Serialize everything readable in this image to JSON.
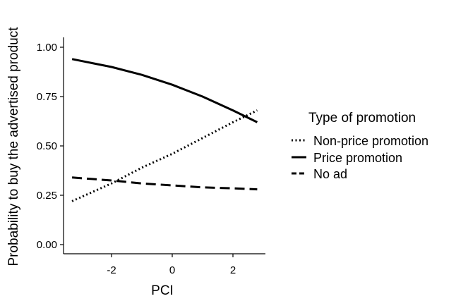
{
  "chart_data": {
    "type": "line",
    "title": "",
    "xlabel": "PCI",
    "ylabel": "Probability to buy the advertised product",
    "xlim": [
      -3.5,
      2.8
    ],
    "ylim": [
      0,
      1
    ],
    "x_ticks": [
      -2,
      0,
      2
    ],
    "x_tick_labels": [
      "-2",
      "0",
      "2"
    ],
    "y_ticks": [
      0,
      0.25,
      0.5,
      0.75,
      1
    ],
    "y_tick_labels": [
      "0.00",
      "0.25",
      "0.50",
      "0.75",
      "1.00"
    ],
    "grid": false,
    "legend": {
      "title": "Type of promotion",
      "position": "right",
      "entries": [
        "Non-price promotion",
        "Price promotion",
        "No ad"
      ]
    },
    "series": [
      {
        "name": "Non-price promotion",
        "style": "dotted",
        "color": "#000000",
        "x": [
          -3.3,
          -2,
          -1,
          0,
          1,
          2,
          2.8
        ],
        "y": [
          0.22,
          0.31,
          0.39,
          0.46,
          0.54,
          0.62,
          0.68
        ]
      },
      {
        "name": "Price promotion",
        "style": "solid",
        "color": "#000000",
        "x": [
          -3.3,
          -2,
          -1,
          0,
          1,
          2,
          2.8
        ],
        "y": [
          0.94,
          0.9,
          0.86,
          0.81,
          0.75,
          0.68,
          0.62
        ]
      },
      {
        "name": "No ad",
        "style": "dashed",
        "color": "#000000",
        "x": [
          -3.3,
          -2,
          -1,
          0,
          1,
          2,
          2.8
        ],
        "y": [
          0.34,
          0.325,
          0.31,
          0.3,
          0.29,
          0.285,
          0.28
        ]
      }
    ]
  }
}
